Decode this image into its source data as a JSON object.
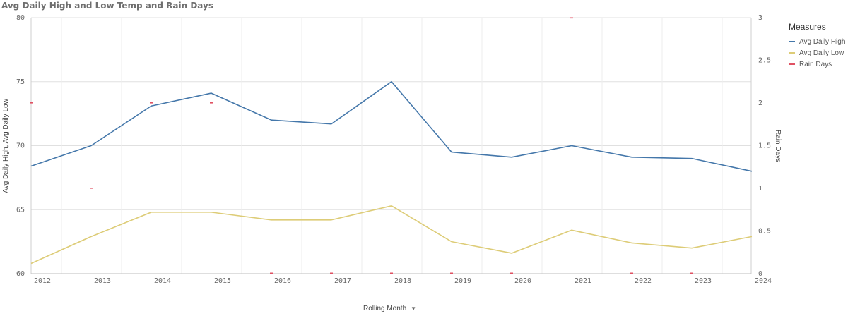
{
  "chart_data": {
    "type": "line",
    "title": "Avg Daily High and Low Temp and Rain Days",
    "xlabel": "Rolling Month",
    "ylabel": "Avg Daily High, Avg Daily Low",
    "y2label": "Rain Days",
    "ylim": [
      60,
      80
    ],
    "y2lim": [
      0,
      3
    ],
    "yticks": [
      "60",
      "65",
      "70",
      "75",
      "80"
    ],
    "y2ticks": [
      "0",
      "0.5",
      "1",
      "1.5",
      "2",
      "2.5",
      "3"
    ],
    "xticks": [
      "2012",
      "2013",
      "2014",
      "2015",
      "2016",
      "2017",
      "2018",
      "2019",
      "2020",
      "2021",
      "2022",
      "2023",
      "2024"
    ],
    "x": [
      "2012",
      "2013",
      "2014",
      "2015",
      "2016",
      "2017",
      "2018",
      "2019",
      "2020",
      "2021",
      "2022",
      "2023",
      "2024"
    ],
    "series": [
      {
        "name": "Avg Daily High",
        "color": "#4477aa",
        "values": [
          68.4,
          70.0,
          73.1,
          74.1,
          72.0,
          71.7,
          75.0,
          69.5,
          69.1,
          70.0,
          69.1,
          69.0,
          68.0
        ]
      },
      {
        "name": "Avg Daily Low",
        "color": "#ddcc77",
        "values": [
          60.8,
          62.9,
          64.8,
          64.8,
          64.2,
          64.2,
          65.3,
          62.5,
          61.6,
          63.4,
          62.4,
          62.0,
          62.9
        ]
      },
      {
        "name": "Rain Days",
        "color": "#e05263",
        "axis": "right",
        "values": [
          2,
          1,
          2,
          2,
          0,
          0,
          0,
          0,
          0,
          3,
          0,
          0,
          null
        ]
      }
    ],
    "legend_title": "Measures",
    "legend": "right",
    "grid": true
  }
}
